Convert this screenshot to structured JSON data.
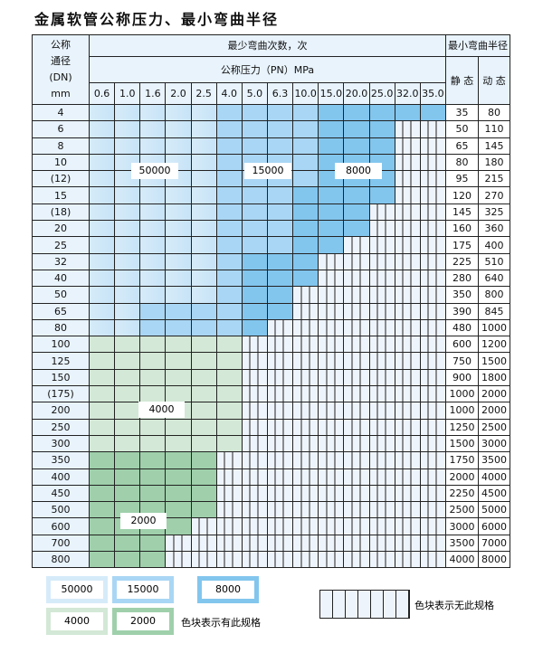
{
  "title": "金属软管公称压力、最小弯曲半径",
  "header": {
    "dn_label": [
      "公称",
      "通径",
      "(DN)",
      "mm"
    ],
    "cycles_label": "最少弯曲次数，次",
    "pressure_label": "公称压力（PN）MPa",
    "radius_label": "最小弯曲半径",
    "static_label": "静 态",
    "dynamic_label": "动 态",
    "pressures": [
      "0.6",
      "1.0",
      "1.6",
      "2.0",
      "2.5",
      "4.0",
      "5.0",
      "6.3",
      "10.0",
      "15.0",
      "20.0",
      "25.0",
      "32.0",
      "35.0"
    ]
  },
  "colors": {
    "L": "#d6ebf9",
    "M": "#a9d6f4",
    "D": "#82c6ee",
    "G": "#d3e8d6",
    "H": "#9fd0ab",
    "none": "#eef4fb"
  },
  "rows": [
    {
      "dn": "4",
      "static": "35",
      "dynamic": "80",
      "tiers": "LLLLLMMMMDDDDD"
    },
    {
      "dn": "6",
      "static": "50",
      "dynamic": "110",
      "tiers": "LLLLLMMMMDDD"
    },
    {
      "dn": "8",
      "static": "65",
      "dynamic": "145",
      "tiers": "LLLLLMMMMDDD"
    },
    {
      "dn": "10",
      "static": "80",
      "dynamic": "180",
      "tiers": "LLLLLMMMMDDD"
    },
    {
      "dn": "(12)",
      "static": "95",
      "dynamic": "215",
      "tiers": "LLLLLMMMMDDD"
    },
    {
      "dn": "15",
      "static": "120",
      "dynamic": "270",
      "tiers": "LLLLLMMMDDDD"
    },
    {
      "dn": "(18)",
      "static": "145",
      "dynamic": "325",
      "tiers": "LLLLLMMMDDD"
    },
    {
      "dn": "20",
      "static": "160",
      "dynamic": "360",
      "tiers": "LLLLLMMMDDD"
    },
    {
      "dn": "25",
      "static": "175",
      "dynamic": "400",
      "tiers": "LLLLLMMMDD"
    },
    {
      "dn": "32",
      "static": "225",
      "dynamic": "510",
      "tiers": "LLLLLMDDD"
    },
    {
      "dn": "40",
      "static": "280",
      "dynamic": "640",
      "tiers": "LLLLLMDDD"
    },
    {
      "dn": "50",
      "static": "350",
      "dynamic": "800",
      "tiers": "LLLLLMDD"
    },
    {
      "dn": "65",
      "static": "390",
      "dynamic": "845",
      "tiers": "LLMMMMDD"
    },
    {
      "dn": "80",
      "static": "480",
      "dynamic": "1000",
      "tiers": "LLMMMMD"
    },
    {
      "dn": "100",
      "static": "600",
      "dynamic": "1200",
      "tiers": "GGGGGG"
    },
    {
      "dn": "125",
      "static": "750",
      "dynamic": "1500",
      "tiers": "GGGGGG"
    },
    {
      "dn": "150",
      "static": "900",
      "dynamic": "1800",
      "tiers": "GGGGGG"
    },
    {
      "dn": "(175)",
      "static": "1000",
      "dynamic": "2000",
      "tiers": "GGGGGG"
    },
    {
      "dn": "200",
      "static": "1000",
      "dynamic": "2000",
      "tiers": "GGGGGG"
    },
    {
      "dn": "250",
      "static": "1250",
      "dynamic": "2500",
      "tiers": "GGGGGG"
    },
    {
      "dn": "300",
      "static": "1500",
      "dynamic": "3000",
      "tiers": "GGGGGG"
    },
    {
      "dn": "350",
      "static": "1750",
      "dynamic": "3500",
      "tiers": "HHHHH"
    },
    {
      "dn": "400",
      "static": "2000",
      "dynamic": "4000",
      "tiers": "HHHHH"
    },
    {
      "dn": "450",
      "static": "2250",
      "dynamic": "4500",
      "tiers": "HHHHH"
    },
    {
      "dn": "500",
      "static": "2500",
      "dynamic": "5000",
      "tiers": "HHHHH"
    },
    {
      "dn": "600",
      "static": "3000",
      "dynamic": "6000",
      "tiers": "HHHH"
    },
    {
      "dn": "700",
      "static": "3500",
      "dynamic": "7000",
      "tiers": "HHH"
    },
    {
      "dn": "800",
      "static": "4000",
      "dynamic": "8000",
      "tiers": "HHH"
    }
  ],
  "region_labels": {
    "l50000": "50000",
    "l15000": "15000",
    "l8000": "8000",
    "l4000": "4000",
    "l2000": "2000"
  },
  "legend": {
    "items": [
      "50000",
      "15000",
      "8000",
      "4000",
      "2000"
    ],
    "has_spec": "色块表示有此规格",
    "no_spec": "色块表示无此规格"
  }
}
